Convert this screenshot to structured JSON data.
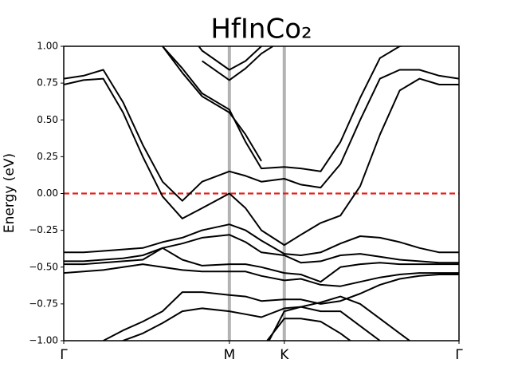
{
  "chart_data": {
    "type": "line",
    "title": "HfInCo₂",
    "y_label": "Energy (eV)",
    "xlim": [
      0,
      1
    ],
    "ylim": [
      -1,
      1
    ],
    "xticks": [
      {
        "value": 0,
        "label": "Γ"
      },
      {
        "value": 0.419,
        "label": "M"
      },
      {
        "value": 0.558,
        "label": "K"
      },
      {
        "value": 1,
        "label": "Γ"
      }
    ],
    "yticks": [
      {
        "value": -1,
        "label": "−1.00"
      },
      {
        "value": -0.75,
        "label": "−0.75"
      },
      {
        "value": -0.5,
        "label": "−0.50"
      },
      {
        "value": -0.25,
        "label": "−0.25"
      },
      {
        "value": 0,
        "label": "0.00"
      },
      {
        "value": 0.25,
        "label": "0.25"
      },
      {
        "value": 0.5,
        "label": "0.50"
      },
      {
        "value": 0.75,
        "label": "0.75"
      },
      {
        "value": 1,
        "label": "1.00"
      }
    ],
    "x_grid_color": "#b3b3b3",
    "fermi_level": 0,
    "fermi_color": "#e8221c",
    "x": [
      0,
      0.05,
      0.1,
      0.15,
      0.2,
      0.25,
      0.3,
      0.35,
      0.419,
      0.46,
      0.5,
      0.558,
      0.6,
      0.65,
      0.7,
      0.75,
      0.8,
      0.85,
      0.9,
      0.95,
      1
    ],
    "series": [
      {
        "color": "#000000",
        "values": [
          0.74,
          0.77,
          0.78,
          0.55,
          0.25,
          -0.02,
          -0.17,
          -0.1,
          0.0,
          -0.1,
          -0.25,
          -0.35,
          -0.28,
          -0.2,
          -0.15,
          0.05,
          0.4,
          0.7,
          0.78,
          0.74,
          0.74
        ]
      },
      {
        "color": "#000000",
        "values": [
          0.78,
          0.8,
          0.84,
          0.62,
          0.33,
          0.08,
          -0.05,
          0.08,
          0.15,
          0.12,
          0.08,
          0.1,
          0.06,
          0.04,
          0.2,
          0.5,
          0.78,
          0.84,
          0.84,
          0.8,
          0.78
        ]
      },
      {
        "color": "#000000",
        "values": [
          null,
          null,
          null,
          null,
          null,
          1.0,
          0.85,
          0.68,
          0.57,
          0.35,
          0.17,
          0.18,
          0.17,
          0.15,
          0.35,
          0.65,
          0.92,
          1.0,
          1.02,
          null,
          null
        ]
      },
      {
        "color": "#000000",
        "values": [
          null,
          null,
          null,
          null,
          null,
          1.0,
          0.82,
          0.66,
          0.55,
          0.4,
          0.22,
          null,
          null,
          null,
          null,
          null,
          null,
          null,
          null,
          null,
          null
        ]
      },
      {
        "color": "#000000",
        "values": [
          null,
          null,
          null,
          null,
          null,
          null,
          1.15,
          0.97,
          0.84,
          0.9,
          1.0,
          1.15,
          null,
          null,
          null,
          null,
          null,
          null,
          null,
          null,
          null
        ]
      },
      {
        "color": "#000000",
        "values": [
          null,
          null,
          null,
          null,
          null,
          null,
          null,
          0.9,
          0.77,
          0.85,
          0.95,
          1.05,
          null,
          null,
          null,
          null,
          null,
          null,
          null,
          null,
          null
        ]
      },
      {
        "color": "#000000",
        "values": [
          -0.4,
          -0.4,
          -0.39,
          -0.38,
          -0.37,
          -0.33,
          -0.3,
          -0.25,
          -0.21,
          -0.25,
          -0.32,
          -0.41,
          -0.42,
          -0.4,
          -0.34,
          -0.29,
          -0.3,
          -0.33,
          -0.37,
          -0.4,
          -0.4
        ]
      },
      {
        "color": "#000000",
        "values": [
          -0.46,
          -0.46,
          -0.45,
          -0.44,
          -0.42,
          -0.37,
          -0.34,
          -0.3,
          -0.28,
          -0.33,
          -0.4,
          -0.42,
          -0.47,
          -0.46,
          -0.42,
          -0.41,
          -0.43,
          -0.45,
          -0.46,
          -0.47,
          -0.47
        ]
      },
      {
        "color": "#000000",
        "values": [
          -0.48,
          -0.48,
          -0.47,
          -0.46,
          -0.45,
          -0.37,
          -0.45,
          -0.49,
          -0.48,
          -0.48,
          -0.5,
          -0.54,
          -0.55,
          -0.6,
          -0.5,
          -0.48,
          -0.47,
          -0.48,
          -0.48,
          -0.48,
          -0.48
        ]
      },
      {
        "color": "#000000",
        "values": [
          -0.54,
          -0.53,
          -0.52,
          -0.5,
          -0.48,
          -0.5,
          -0.52,
          -0.53,
          -0.53,
          -0.53,
          -0.56,
          -0.59,
          -0.58,
          -0.62,
          -0.63,
          -0.6,
          -0.57,
          -0.55,
          -0.54,
          -0.54,
          -0.54
        ]
      },
      {
        "color": "#000000",
        "values": [
          null,
          null,
          -1.0,
          -0.93,
          -0.87,
          -0.8,
          -0.67,
          -0.67,
          -0.69,
          -0.7,
          -0.73,
          -0.72,
          -0.72,
          -0.75,
          -0.73,
          -0.68,
          -0.62,
          -0.58,
          -0.56,
          -0.55,
          -0.55
        ]
      },
      {
        "color": "#000000",
        "values": [
          null,
          null,
          -1.1,
          -1.0,
          -0.95,
          -0.88,
          -0.8,
          -0.78,
          -0.8,
          -0.82,
          -0.84,
          -0.78,
          -0.77,
          -0.74,
          -0.7,
          -0.75,
          -0.85,
          -0.95,
          -1.05,
          null,
          null
        ]
      },
      {
        "color": "#000000",
        "values": [
          null,
          null,
          null,
          null,
          null,
          null,
          null,
          null,
          null,
          null,
          -1.1,
          -0.8,
          -0.77,
          -0.8,
          -0.8,
          -0.9,
          -1.0,
          -1.1,
          null,
          null,
          null
        ]
      },
      {
        "color": "#000000",
        "values": [
          null,
          null,
          null,
          null,
          null,
          null,
          null,
          null,
          null,
          null,
          -1.05,
          -0.85,
          -0.85,
          -0.87,
          -0.95,
          -1.05,
          null,
          null,
          null,
          null,
          null
        ]
      }
    ]
  }
}
